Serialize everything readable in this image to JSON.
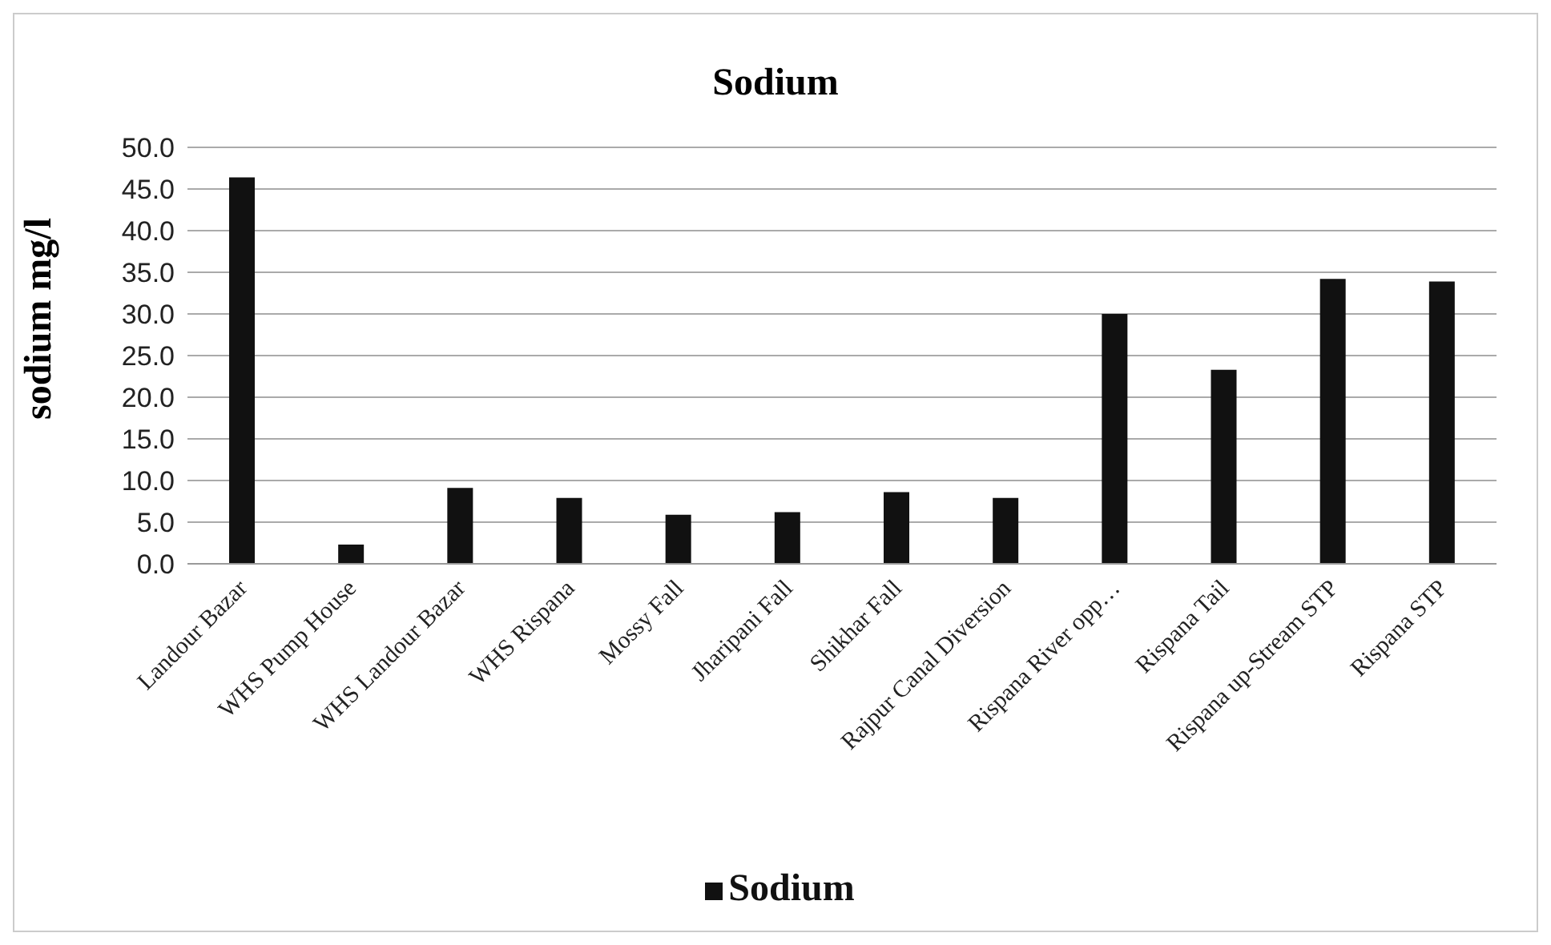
{
  "chart_data": {
    "type": "bar",
    "title": "Sodium",
    "ylabel": "sodium mg/l",
    "categories": [
      "Landour Bazar",
      "WHS Pump House",
      "WHS Landour Bazar",
      "WHS Rispana",
      "Mossy Fall",
      "Jharipani Fall",
      "Shikhar Fall",
      "Rajpur Canal Diversion",
      "Rispana River opp…",
      "Rispana Tail",
      "Rispana up-Stream STP",
      "Rispana STP"
    ],
    "series": [
      {
        "name": "Sodium",
        "color": "#111111",
        "values": [
          46.4,
          2.3,
          9.1,
          7.9,
          5.9,
          6.2,
          8.6,
          7.9,
          30.0,
          23.3,
          34.2,
          33.9
        ]
      }
    ],
    "ylim": [
      0,
      50
    ],
    "yticks": [
      {
        "value": 0,
        "label": "0.0"
      },
      {
        "value": 5,
        "label": "5.0"
      },
      {
        "value": 10,
        "label": "10.0"
      },
      {
        "value": 15,
        "label": "15.0"
      },
      {
        "value": 20,
        "label": "20.0"
      },
      {
        "value": 25,
        "label": "25.0"
      },
      {
        "value": 30,
        "label": "30.0"
      },
      {
        "value": 35,
        "label": "35.0"
      },
      {
        "value": 40,
        "label": "40.0"
      },
      {
        "value": 45,
        "label": "45.0"
      },
      {
        "value": 50,
        "label": "50.0"
      }
    ],
    "grid": "y",
    "legend": "bottom"
  }
}
